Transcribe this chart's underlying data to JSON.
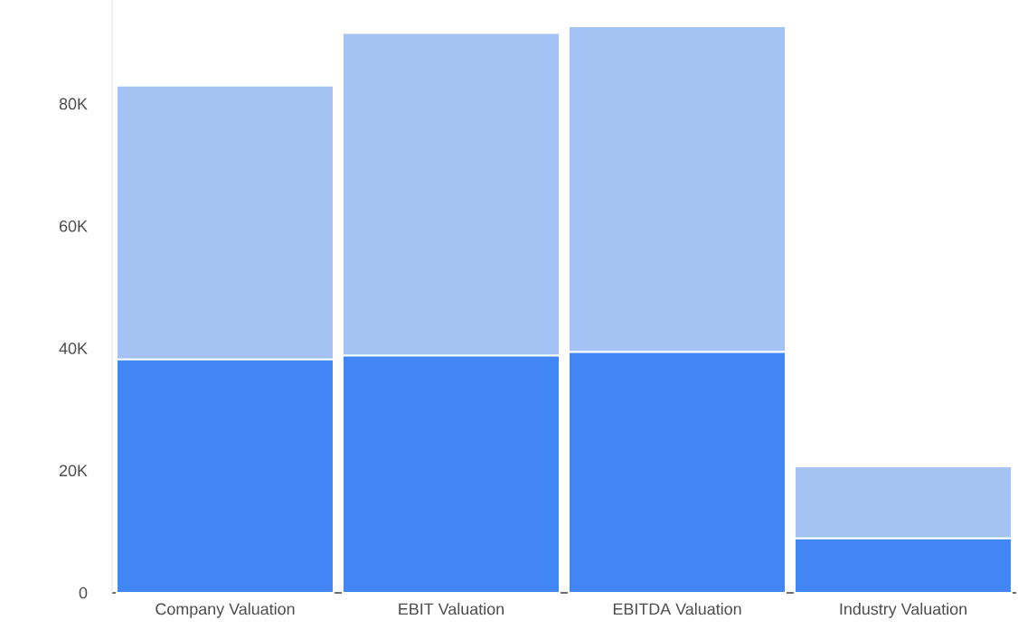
{
  "chart_data": {
    "type": "bar",
    "stacked": true,
    "categories": [
      "Company Valuation",
      "EBIT Valuation",
      "EBITDA Valuation",
      "Industry Valuation"
    ],
    "series": [
      {
        "color": "#4285f4",
        "values": [
          38200,
          38800,
          39400,
          8900
        ]
      },
      {
        "color": "#a4c2f4",
        "values": [
          44800,
          52800,
          53300,
          11800
        ]
      }
    ],
    "yticks": [
      0,
      {
        "value": 20000,
        "label": "20K"
      },
      {
        "value": 40000,
        "label": "40K"
      },
      {
        "value": 60000,
        "label": "60K"
      },
      {
        "value": 80000,
        "label": "80K"
      }
    ],
    "ylim": [
      0,
      97000
    ],
    "grid": false
  }
}
